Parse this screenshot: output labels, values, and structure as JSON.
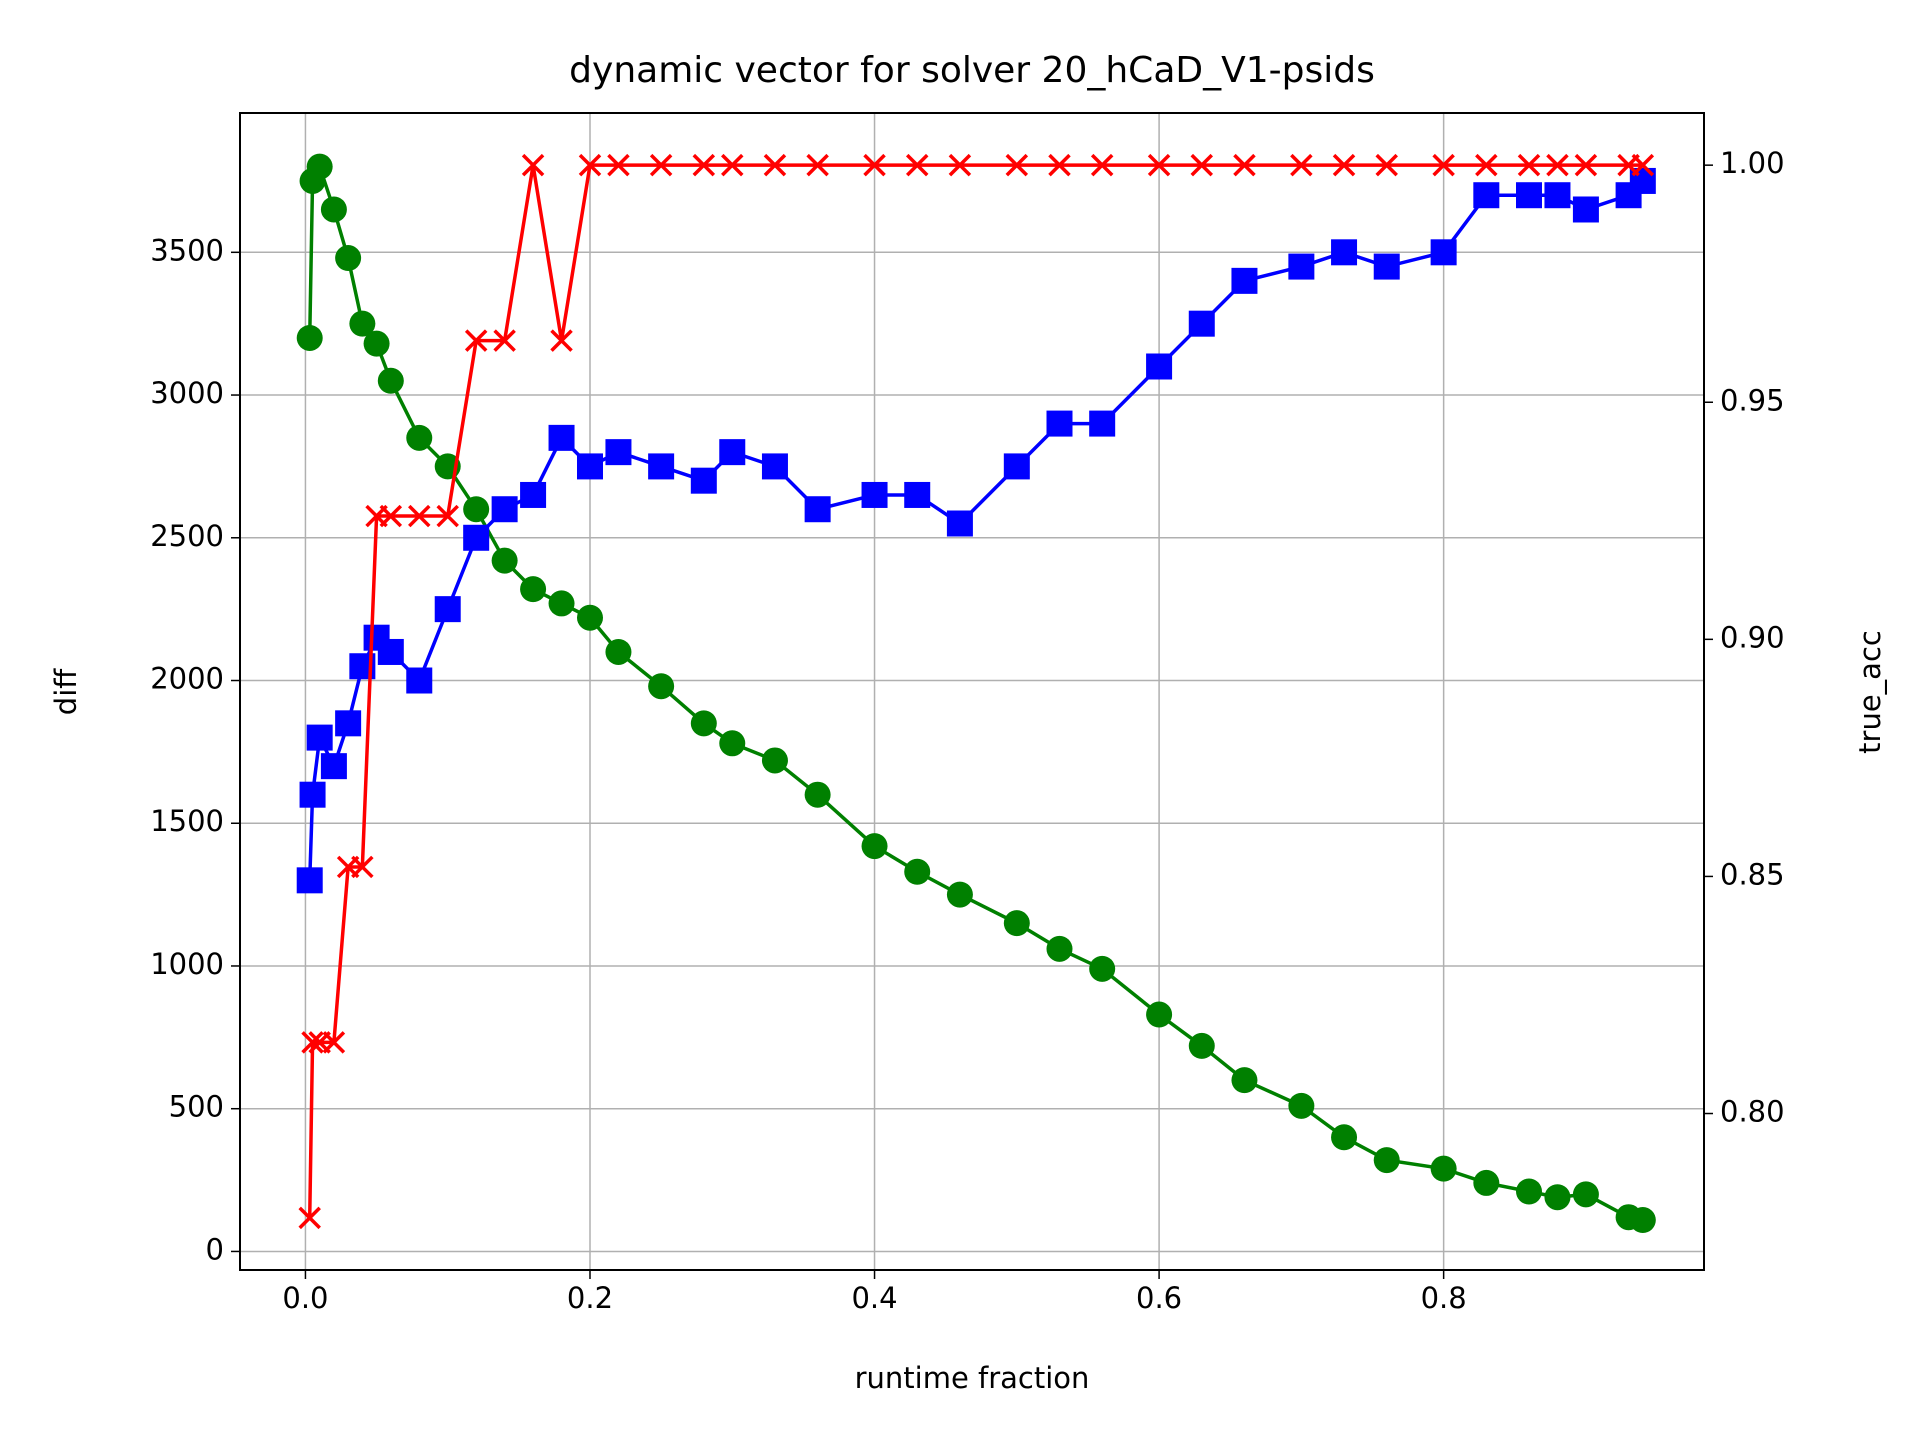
{
  "chart_data": {
    "type": "line",
    "title": "dynamic vector for solver 20_hCaD_V1-psids",
    "xlabel": "runtime fraction",
    "ylabel": "diff",
    "y2label": "true_acc",
    "ylabel_color": "green",
    "y2label_color": "red",
    "grid": true,
    "x": [
      0.003,
      0.005,
      0.01,
      0.02,
      0.03,
      0.04,
      0.05,
      0.06,
      0.08,
      0.1,
      0.12,
      0.14,
      0.16,
      0.18,
      0.2,
      0.22,
      0.25,
      0.28,
      0.3,
      0.33,
      0.36,
      0.4,
      0.43,
      0.46,
      0.5,
      0.53,
      0.56,
      0.6,
      0.63,
      0.66,
      0.7,
      0.73,
      0.76,
      0.8,
      0.83,
      0.86,
      0.88,
      0.9,
      0.93,
      0.94
    ],
    "series": [
      {
        "color": "green",
        "marker": "circle",
        "values": [
          3200,
          3750,
          3800,
          3650,
          3480,
          3250,
          3180,
          3050,
          2850,
          2750,
          2600,
          2420,
          2320,
          2270,
          2220,
          2100,
          1980,
          1850,
          1780,
          1720,
          1600,
          1420,
          1330,
          1250,
          1150,
          1060,
          990,
          830,
          720,
          600,
          510,
          400,
          320,
          290,
          240,
          210,
          190,
          200,
          120,
          110
        ]
      },
      {
        "color": "blue",
        "marker": "square",
        "values": [
          1300,
          1600,
          1800,
          1700,
          1850,
          2050,
          2150,
          2100,
          2000,
          2250,
          2500,
          2600,
          2650,
          2850,
          2750,
          2800,
          2750,
          2700,
          2800,
          2750,
          2600,
          2650,
          2650,
          2550,
          2750,
          2900,
          2900,
          3100,
          3250,
          3400,
          3450,
          3500,
          3450,
          3500,
          3700,
          3700,
          3700,
          3650,
          3700,
          3750
        ]
      },
      {
        "color": "red",
        "marker": "x",
        "axis": "y2",
        "values": [
          0.778,
          0.815,
          0.815,
          0.815,
          0.852,
          0.852,
          0.926,
          0.926,
          0.926,
          0.926,
          0.963,
          0.963,
          1.0,
          0.963,
          1.0,
          1.0,
          1.0,
          1.0,
          1.0,
          1.0,
          1.0,
          1.0,
          1.0,
          1.0,
          1.0,
          1.0,
          1.0,
          1.0,
          1.0,
          1.0,
          1.0,
          1.0,
          1.0,
          1.0,
          1.0,
          1.0,
          1.0,
          1.0,
          1.0,
          1.0
        ]
      }
    ],
    "xlim": [
      -0.046,
      0.983
    ],
    "xticks": [
      {
        "value": 0,
        "label": "0.0"
      },
      0.2,
      0.4,
      0.6,
      0.8
    ],
    "ylim": [
      -65,
      3988
    ],
    "yticks": [
      0,
      500,
      1000,
      1500,
      2000,
      2500,
      3000,
      3500
    ],
    "y2lim": [
      0.767,
      1.011
    ],
    "y2ticks": [
      {
        "value": 0.8,
        "label": "0.80"
      },
      0.85,
      {
        "value": 0.9,
        "label": "0.90"
      },
      0.95,
      {
        "value": 1.0,
        "label": "1.00"
      }
    ]
  }
}
